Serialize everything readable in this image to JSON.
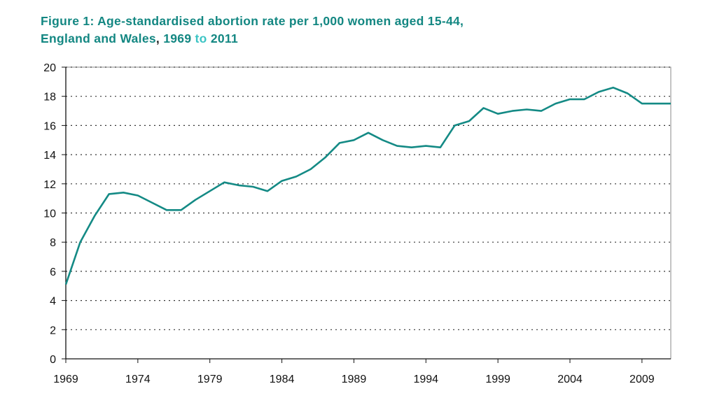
{
  "chart_data": {
    "type": "line",
    "title_line1": "Figure 1: Age-standardised abortion rate per 1,000 women aged 15-44,",
    "title_line2_a": "England and Wales",
    "title_line2_comma": ",",
    "title_line2_b": " 1969 ",
    "title_line2_to": "to",
    "title_line2_c": " 2011",
    "xlabel": "",
    "ylabel": "",
    "xlim": [
      1969,
      2011
    ],
    "ylim": [
      0,
      20
    ],
    "y_ticks": [
      0,
      2,
      4,
      6,
      8,
      10,
      12,
      14,
      16,
      18,
      20
    ],
    "x_ticks": [
      1969,
      1974,
      1979,
      1984,
      1989,
      1994,
      1999,
      2004,
      2009
    ],
    "grid": "horizontal dotted",
    "line_color": "#148a85",
    "series": [
      {
        "name": "Age-standardised abortion rate",
        "x": [
          1969,
          1970,
          1971,
          1972,
          1973,
          1974,
          1975,
          1976,
          1977,
          1978,
          1979,
          1980,
          1981,
          1982,
          1983,
          1984,
          1985,
          1986,
          1987,
          1988,
          1989,
          1990,
          1991,
          1992,
          1993,
          1994,
          1995,
          1996,
          1997,
          1998,
          1999,
          2000,
          2001,
          2002,
          2003,
          2004,
          2005,
          2006,
          2007,
          2008,
          2009,
          2010,
          2011
        ],
        "values": [
          5.1,
          8.0,
          9.8,
          11.3,
          11.4,
          11.2,
          10.7,
          10.2,
          10.2,
          10.9,
          11.5,
          12.1,
          11.9,
          11.8,
          11.5,
          12.2,
          12.5,
          13.0,
          13.8,
          14.8,
          15.0,
          15.5,
          15.0,
          14.6,
          14.5,
          14.6,
          14.5,
          16.0,
          16.3,
          17.2,
          16.8,
          17.0,
          17.1,
          17.0,
          17.5,
          17.8,
          17.8,
          18.3,
          18.6,
          18.2,
          17.5,
          17.5,
          17.5
        ]
      }
    ]
  }
}
